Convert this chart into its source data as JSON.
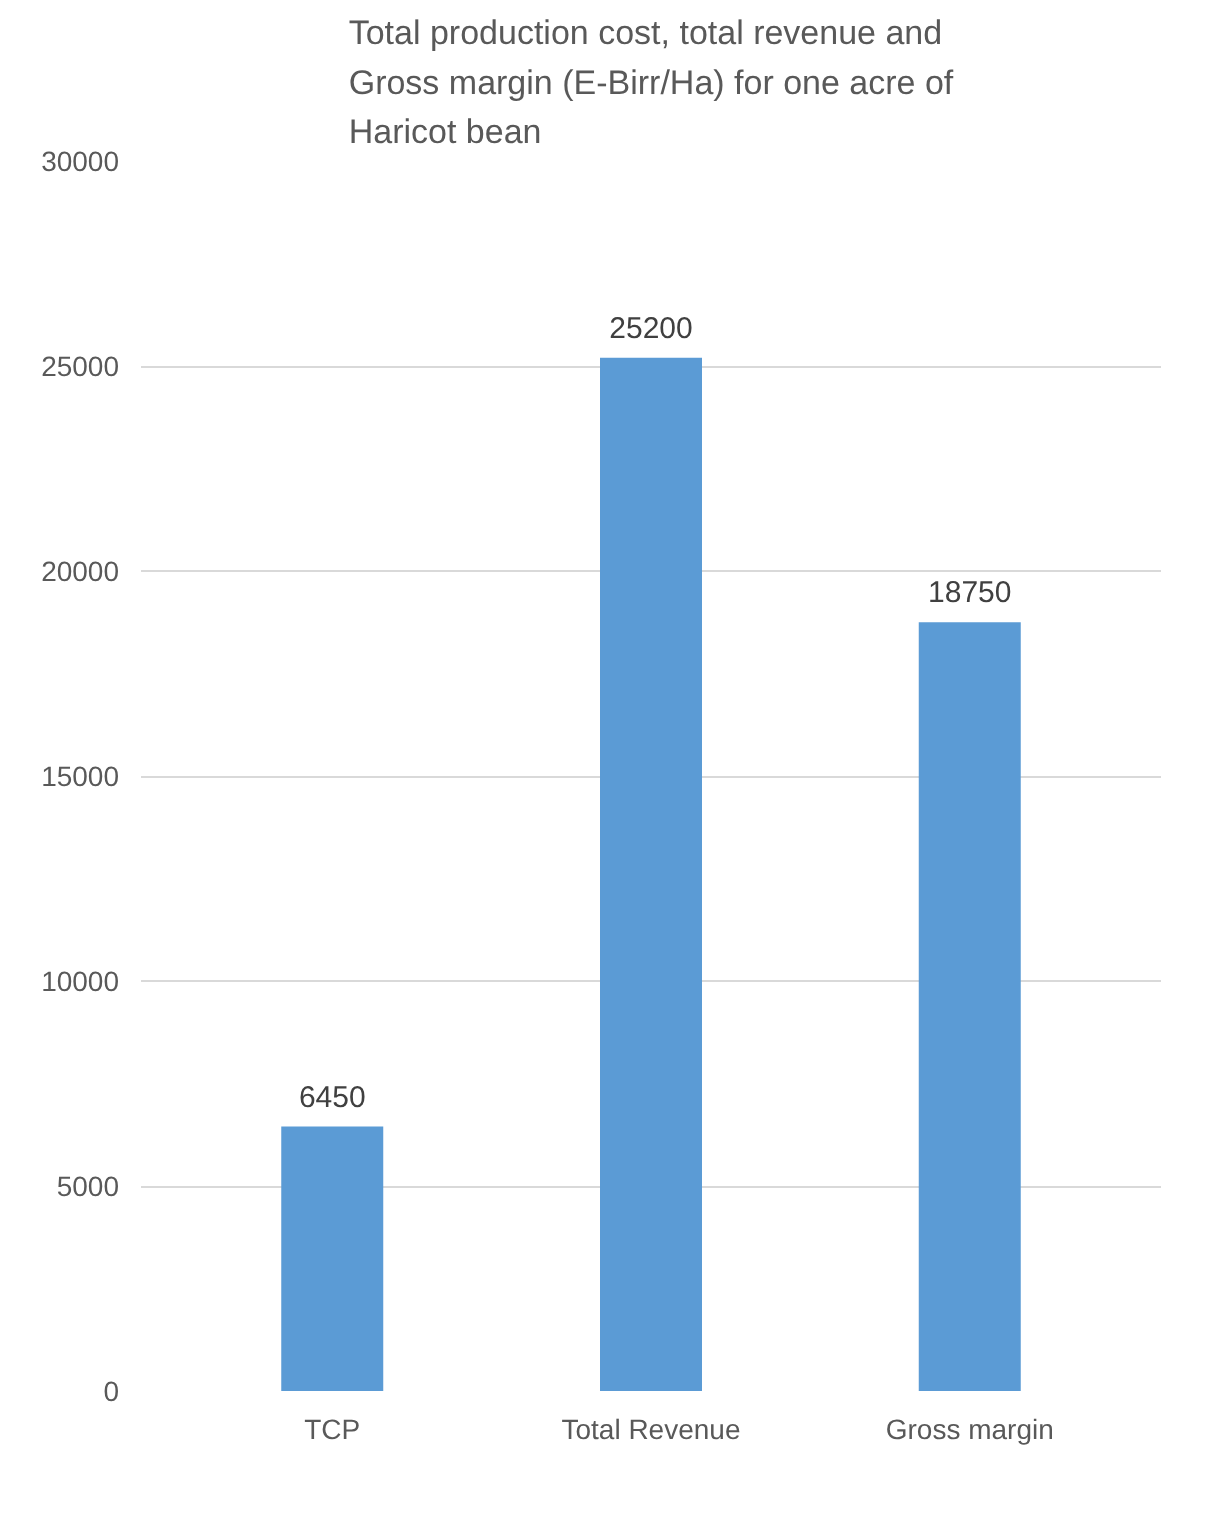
{
  "chart_data": {
    "type": "bar",
    "title": "Total production cost, total revenue and Gross margin (E-Birr/Ha) for one acre of Haricot bean",
    "categories": [
      "TCP",
      "Total Revenue",
      "Gross margin"
    ],
    "values": [
      6450,
      25200,
      18750
    ],
    "color": "#5b9bd5",
    "ylim": [
      0,
      30000
    ],
    "yticks": [
      0,
      5000,
      10000,
      15000,
      20000,
      25000,
      30000
    ],
    "grid": "y",
    "data_labels": true
  }
}
